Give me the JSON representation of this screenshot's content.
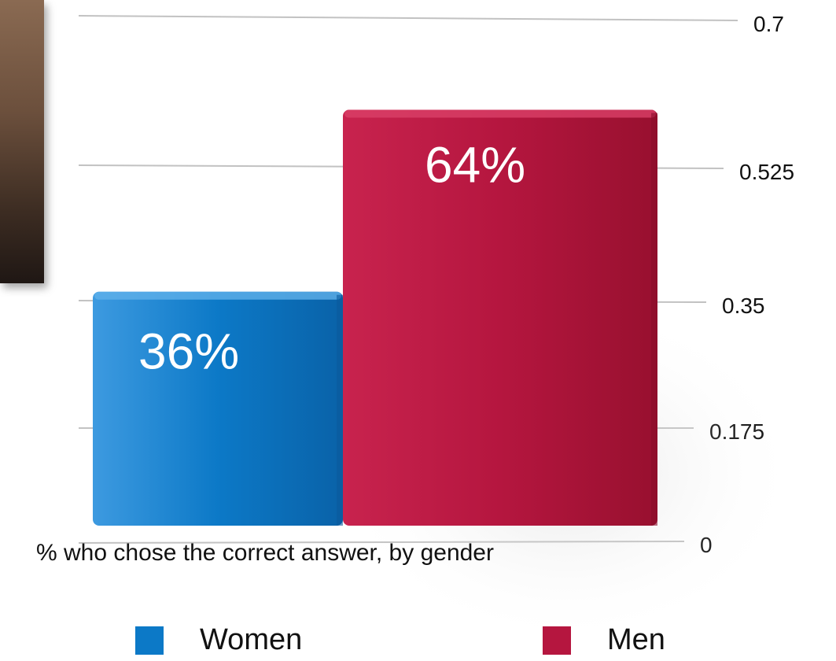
{
  "chart_data": {
    "type": "bar",
    "categories": [
      "Women",
      "Men"
    ],
    "values": [
      0.36,
      0.64
    ],
    "data_labels": [
      "36%",
      "64%"
    ],
    "caption": "% who chose the correct answer, by gender",
    "yticks": [
      "0",
      "0.175",
      "0.35",
      "0.525",
      "0.7"
    ],
    "ylim": [
      0,
      0.7
    ],
    "grid": true,
    "legend_position": "bottom",
    "colors": [
      "#0c79c7",
      "#b5163f"
    ]
  },
  "legend": {
    "items": [
      {
        "label": "Women",
        "color": "#0c79c7"
      },
      {
        "label": "Men",
        "color": "#b5163f"
      }
    ]
  }
}
